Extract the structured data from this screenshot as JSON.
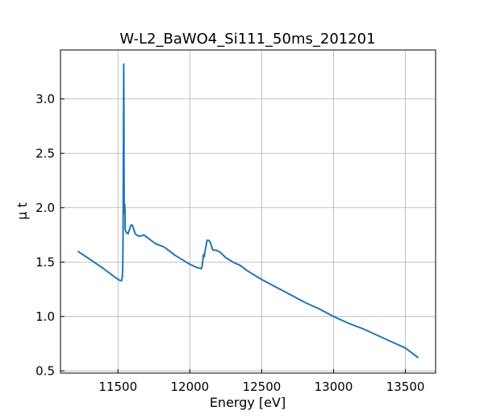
{
  "chart_data": {
    "type": "line",
    "title": "W-L2_BaWO4_Si111_50ms_201201",
    "xlabel": "Energy [eV]",
    "ylabel": "μ t",
    "xlim": [
      11100,
      13710
    ],
    "ylim": [
      0.48,
      3.45
    ],
    "xticks": [
      11500,
      12000,
      12500,
      13000,
      13500
    ],
    "yticks": [
      0.5,
      1.0,
      1.5,
      2.0,
      2.5,
      3.0
    ],
    "xtick_labels": [
      "11500",
      "12000",
      "12500",
      "13000",
      "13500"
    ],
    "ytick_labels": [
      "0.5",
      "1.0",
      "1.5",
      "2.0",
      "2.5",
      "3.0"
    ],
    "grid": true,
    "series_color": "#1f77b4",
    "series": [
      {
        "x": [
          11220,
          11300,
          11400,
          11480,
          11515,
          11525,
          11530,
          11533,
          11535,
          11537,
          11539,
          11540,
          11541,
          11542,
          11543,
          11544,
          11545,
          11547,
          11549,
          11550,
          11555,
          11560,
          11570,
          11580,
          11590,
          11600,
          11610,
          11620,
          11640,
          11660,
          11680,
          11700,
          11720,
          11740,
          11760,
          11780,
          11800,
          11820,
          11850,
          11900,
          11950,
          12000,
          12050,
          12080,
          12085,
          12090,
          12095,
          12100,
          12110,
          12120,
          12130,
          12140,
          12150,
          12160,
          12180,
          12200,
          12220,
          12250,
          12300,
          12350,
          12400,
          12450,
          12500,
          12600,
          12700,
          12800,
          12900,
          13000,
          13100,
          13200,
          13300,
          13400,
          13500,
          13590
        ],
        "y": [
          1.6,
          1.53,
          1.44,
          1.36,
          1.33,
          1.33,
          1.36,
          1.45,
          1.7,
          2.3,
          3.0,
          3.32,
          3.0,
          2.4,
          2.05,
          1.95,
          2.02,
          2.03,
          1.98,
          1.8,
          1.78,
          1.77,
          1.76,
          1.8,
          1.84,
          1.84,
          1.8,
          1.76,
          1.74,
          1.74,
          1.75,
          1.73,
          1.71,
          1.69,
          1.67,
          1.66,
          1.65,
          1.64,
          1.61,
          1.56,
          1.52,
          1.48,
          1.45,
          1.44,
          1.46,
          1.51,
          1.57,
          1.55,
          1.63,
          1.7,
          1.7,
          1.69,
          1.65,
          1.61,
          1.61,
          1.6,
          1.58,
          1.54,
          1.5,
          1.47,
          1.42,
          1.38,
          1.34,
          1.27,
          1.2,
          1.13,
          1.07,
          1.0,
          0.94,
          0.89,
          0.83,
          0.77,
          0.71,
          0.62
        ]
      }
    ]
  }
}
